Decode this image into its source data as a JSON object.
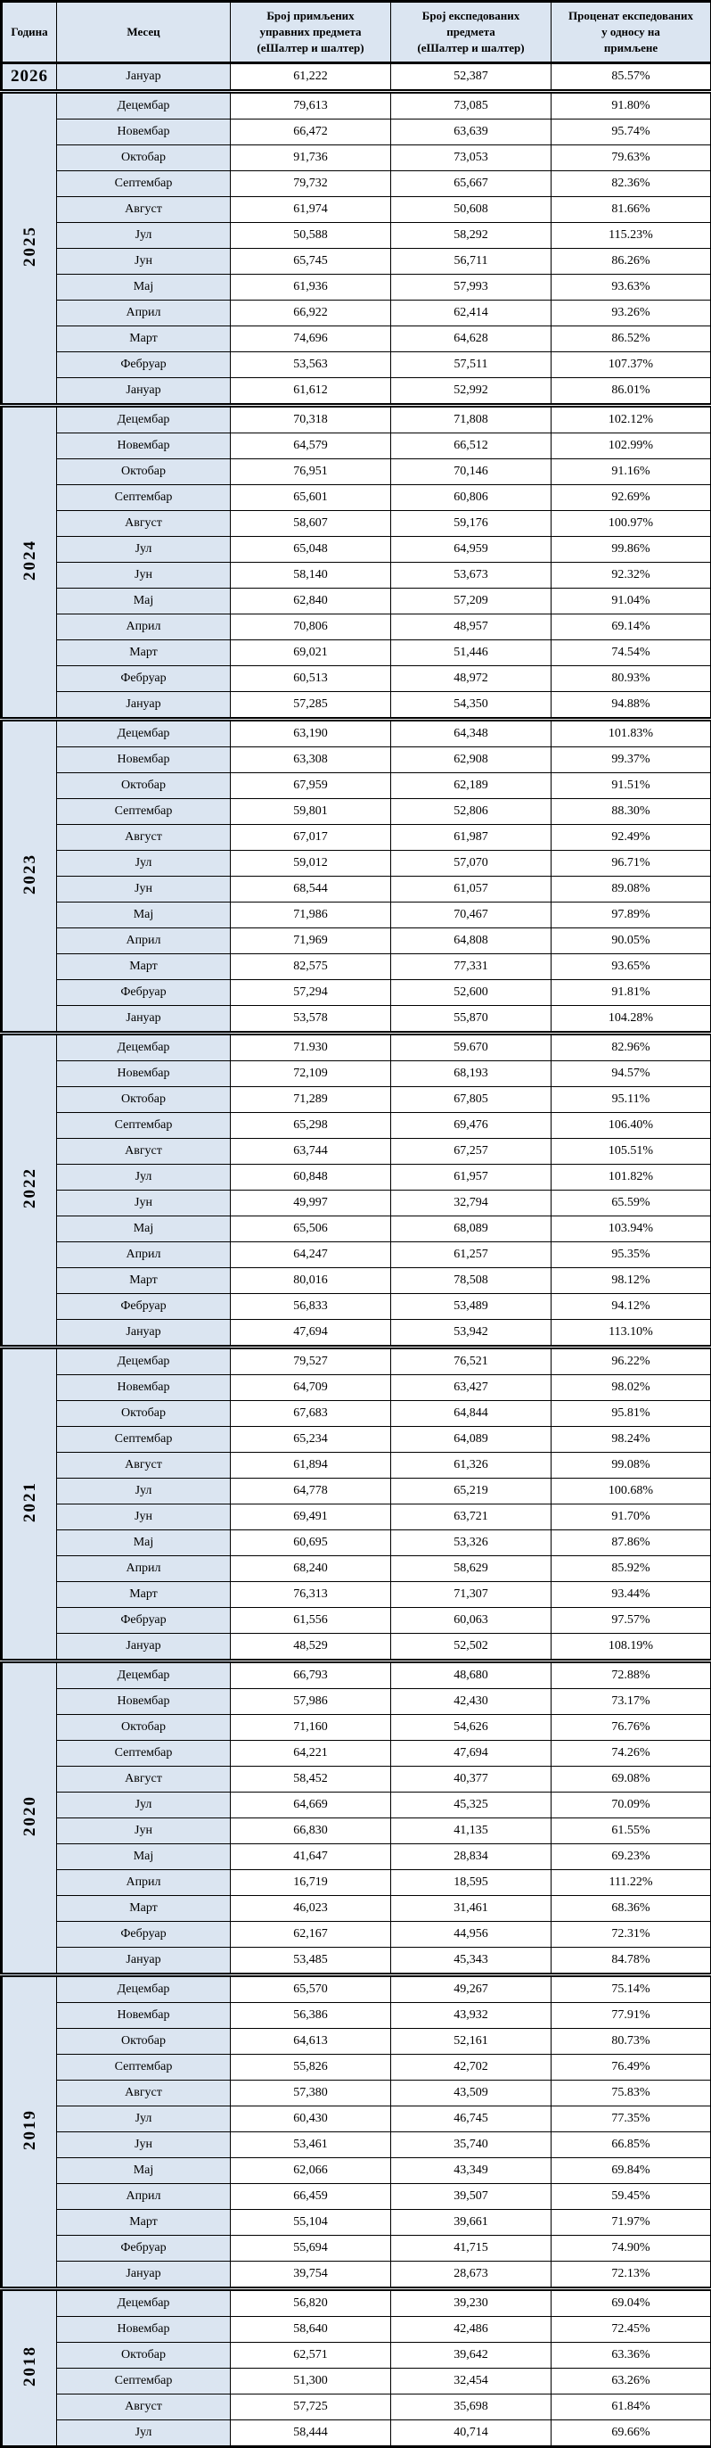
{
  "headers": {
    "year": "Година",
    "month": "Месец",
    "received": "Број примљених\nуправних предмета\n(еШалтер и шалтер)",
    "dispatched": "Број експедованих\nпредмета\n(еШалтер и шалтер)",
    "percent": "Проценат експедованих\nу односу на\nпримљене"
  },
  "colors": {
    "header_bg": "#dbe5f1",
    "cell_bg": "#ffffff",
    "border": "#000000"
  },
  "years": [
    {
      "year": "2026",
      "rows": [
        {
          "month": "Јануар",
          "received": "61,222",
          "dispatched": "52,387",
          "percent": "85.57%"
        }
      ]
    },
    {
      "year": "2025",
      "rows": [
        {
          "month": "Децембар",
          "received": "79,613",
          "dispatched": "73,085",
          "percent": "91.80%"
        },
        {
          "month": "Новембар",
          "received": "66,472",
          "dispatched": "63,639",
          "percent": "95.74%"
        },
        {
          "month": "Октобар",
          "received": "91,736",
          "dispatched": "73,053",
          "percent": "79.63%"
        },
        {
          "month": "Септембар",
          "received": "79,732",
          "dispatched": "65,667",
          "percent": "82.36%"
        },
        {
          "month": "Август",
          "received": "61,974",
          "dispatched": "50,608",
          "percent": "81.66%"
        },
        {
          "month": "Јул",
          "received": "50,588",
          "dispatched": "58,292",
          "percent": "115.23%"
        },
        {
          "month": "Јун",
          "received": "65,745",
          "dispatched": "56,711",
          "percent": "86.26%"
        },
        {
          "month": "Мај",
          "received": "61,936",
          "dispatched": "57,993",
          "percent": "93.63%"
        },
        {
          "month": "Април",
          "received": "66,922",
          "dispatched": "62,414",
          "percent": "93.26%"
        },
        {
          "month": "Март",
          "received": "74,696",
          "dispatched": "64,628",
          "percent": "86.52%"
        },
        {
          "month": "Фебруар",
          "received": "53,563",
          "dispatched": "57,511",
          "percent": "107.37%"
        },
        {
          "month": "Јануар",
          "received": "61,612",
          "dispatched": "52,992",
          "percent": "86.01%"
        }
      ]
    },
    {
      "year": "2024",
      "rows": [
        {
          "month": "Децембар",
          "received": "70,318",
          "dispatched": "71,808",
          "percent": "102.12%"
        },
        {
          "month": "Новембар",
          "received": "64,579",
          "dispatched": "66,512",
          "percent": "102.99%"
        },
        {
          "month": "Октобар",
          "received": "76,951",
          "dispatched": "70,146",
          "percent": "91.16%"
        },
        {
          "month": "Септембар",
          "received": "65,601",
          "dispatched": "60,806",
          "percent": "92.69%"
        },
        {
          "month": "Август",
          "received": "58,607",
          "dispatched": "59,176",
          "percent": "100.97%"
        },
        {
          "month": "Јул",
          "received": "65,048",
          "dispatched": "64,959",
          "percent": "99.86%"
        },
        {
          "month": "Јун",
          "received": "58,140",
          "dispatched": "53,673",
          "percent": "92.32%"
        },
        {
          "month": "Мај",
          "received": "62,840",
          "dispatched": "57,209",
          "percent": "91.04%"
        },
        {
          "month": "Април",
          "received": "70,806",
          "dispatched": "48,957",
          "percent": "69.14%"
        },
        {
          "month": "Март",
          "received": "69,021",
          "dispatched": "51,446",
          "percent": "74.54%"
        },
        {
          "month": "Фебруар",
          "received": "60,513",
          "dispatched": "48,972",
          "percent": "80.93%"
        },
        {
          "month": "Јануар",
          "received": "57,285",
          "dispatched": "54,350",
          "percent": "94.88%"
        }
      ]
    },
    {
      "year": "2023",
      "rows": [
        {
          "month": "Децембар",
          "received": "63,190",
          "dispatched": "64,348",
          "percent": "101.83%"
        },
        {
          "month": "Новембар",
          "received": "63,308",
          "dispatched": "62,908",
          "percent": "99.37%"
        },
        {
          "month": "Октобар",
          "received": "67,959",
          "dispatched": "62,189",
          "percent": "91.51%"
        },
        {
          "month": "Септембар",
          "received": "59,801",
          "dispatched": "52,806",
          "percent": "88.30%"
        },
        {
          "month": "Август",
          "received": "67,017",
          "dispatched": "61,987",
          "percent": "92.49%"
        },
        {
          "month": "Јул",
          "received": "59,012",
          "dispatched": "57,070",
          "percent": "96.71%"
        },
        {
          "month": "Јун",
          "received": "68,544",
          "dispatched": "61,057",
          "percent": "89.08%"
        },
        {
          "month": "Мај",
          "received": "71,986",
          "dispatched": "70,467",
          "percent": "97.89%"
        },
        {
          "month": "Април",
          "received": "71,969",
          "dispatched": "64,808",
          "percent": "90.05%"
        },
        {
          "month": "Март",
          "received": "82,575",
          "dispatched": "77,331",
          "percent": "93.65%"
        },
        {
          "month": "Фебруар",
          "received": "57,294",
          "dispatched": "52,600",
          "percent": "91.81%"
        },
        {
          "month": "Јануар",
          "received": "53,578",
          "dispatched": "55,870",
          "percent": "104.28%"
        }
      ]
    },
    {
      "year": "2022",
      "rows": [
        {
          "month": "Децембар",
          "received": "71.930",
          "dispatched": "59.670",
          "percent": "82.96%"
        },
        {
          "month": "Новембар",
          "received": "72,109",
          "dispatched": "68,193",
          "percent": "94.57%"
        },
        {
          "month": "Октобар",
          "received": "71,289",
          "dispatched": "67,805",
          "percent": "95.11%"
        },
        {
          "month": "Септембар",
          "received": "65,298",
          "dispatched": "69,476",
          "percent": "106.40%"
        },
        {
          "month": "Август",
          "received": "63,744",
          "dispatched": "67,257",
          "percent": "105.51%"
        },
        {
          "month": "Јул",
          "received": "60,848",
          "dispatched": "61,957",
          "percent": "101.82%"
        },
        {
          "month": "Јун",
          "received": "49,997",
          "dispatched": "32,794",
          "percent": "65.59%"
        },
        {
          "month": "Мај",
          "received": "65,506",
          "dispatched": "68,089",
          "percent": "103.94%"
        },
        {
          "month": "Април",
          "received": "64,247",
          "dispatched": "61,257",
          "percent": "95.35%"
        },
        {
          "month": "Март",
          "received": "80,016",
          "dispatched": "78,508",
          "percent": "98.12%"
        },
        {
          "month": "Фебруар",
          "received": "56,833",
          "dispatched": "53,489",
          "percent": "94.12%"
        },
        {
          "month": "Јануар",
          "received": "47,694",
          "dispatched": "53,942",
          "percent": "113.10%"
        }
      ]
    },
    {
      "year": "2021",
      "rows": [
        {
          "month": "Децембар",
          "received": "79,527",
          "dispatched": "76,521",
          "percent": "96.22%"
        },
        {
          "month": "Новембар",
          "received": "64,709",
          "dispatched": "63,427",
          "percent": "98.02%"
        },
        {
          "month": "Октобар",
          "received": "67,683",
          "dispatched": "64,844",
          "percent": "95.81%"
        },
        {
          "month": "Септембар",
          "received": "65,234",
          "dispatched": "64,089",
          "percent": "98.24%"
        },
        {
          "month": "Август",
          "received": "61,894",
          "dispatched": "61,326",
          "percent": "99.08%"
        },
        {
          "month": "Јул",
          "received": "64,778",
          "dispatched": "65,219",
          "percent": "100.68%"
        },
        {
          "month": "Јун",
          "received": "69,491",
          "dispatched": "63,721",
          "percent": "91.70%"
        },
        {
          "month": "Мај",
          "received": "60,695",
          "dispatched": "53,326",
          "percent": "87.86%"
        },
        {
          "month": "Април",
          "received": "68,240",
          "dispatched": "58,629",
          "percent": "85.92%"
        },
        {
          "month": "Март",
          "received": "76,313",
          "dispatched": "71,307",
          "percent": "93.44%"
        },
        {
          "month": "Фебруар",
          "received": "61,556",
          "dispatched": "60,063",
          "percent": "97.57%"
        },
        {
          "month": "Јануар",
          "received": "48,529",
          "dispatched": "52,502",
          "percent": "108.19%"
        }
      ]
    },
    {
      "year": "2020",
      "rows": [
        {
          "month": "Децембар",
          "received": "66,793",
          "dispatched": "48,680",
          "percent": "72.88%"
        },
        {
          "month": "Новембар",
          "received": "57,986",
          "dispatched": "42,430",
          "percent": "73.17%"
        },
        {
          "month": "Октобар",
          "received": "71,160",
          "dispatched": "54,626",
          "percent": "76.76%"
        },
        {
          "month": "Септембар",
          "received": "64,221",
          "dispatched": "47,694",
          "percent": "74.26%"
        },
        {
          "month": "Август",
          "received": "58,452",
          "dispatched": "40,377",
          "percent": "69.08%"
        },
        {
          "month": "Јул",
          "received": "64,669",
          "dispatched": "45,325",
          "percent": "70.09%"
        },
        {
          "month": "Јун",
          "received": "66,830",
          "dispatched": "41,135",
          "percent": "61.55%"
        },
        {
          "month": "Мај",
          "received": "41,647",
          "dispatched": "28,834",
          "percent": "69.23%"
        },
        {
          "month": "Април",
          "received": "16,719",
          "dispatched": "18,595",
          "percent": "111.22%"
        },
        {
          "month": "Март",
          "received": "46,023",
          "dispatched": "31,461",
          "percent": "68.36%"
        },
        {
          "month": "Фебруар",
          "received": "62,167",
          "dispatched": "44,956",
          "percent": "72.31%"
        },
        {
          "month": "Јануар",
          "received": "53,485",
          "dispatched": "45,343",
          "percent": "84.78%"
        }
      ]
    },
    {
      "year": "2019",
      "rows": [
        {
          "month": "Децембар",
          "received": "65,570",
          "dispatched": "49,267",
          "percent": "75.14%"
        },
        {
          "month": "Новембар",
          "received": "56,386",
          "dispatched": "43,932",
          "percent": "77.91%"
        },
        {
          "month": "Октобар",
          "received": "64,613",
          "dispatched": "52,161",
          "percent": "80.73%"
        },
        {
          "month": "Септембар",
          "received": "55,826",
          "dispatched": "42,702",
          "percent": "76.49%"
        },
        {
          "month": "Август",
          "received": "57,380",
          "dispatched": "43,509",
          "percent": "75.83%"
        },
        {
          "month": "Јул",
          "received": "60,430",
          "dispatched": "46,745",
          "percent": "77.35%"
        },
        {
          "month": "Јун",
          "received": "53,461",
          "dispatched": "35,740",
          "percent": "66.85%"
        },
        {
          "month": "Мај",
          "received": "62,066",
          "dispatched": "43,349",
          "percent": "69.84%"
        },
        {
          "month": "Април",
          "received": "66,459",
          "dispatched": "39,507",
          "percent": "59.45%"
        },
        {
          "month": "Март",
          "received": "55,104",
          "dispatched": "39,661",
          "percent": "71.97%"
        },
        {
          "month": "Фебруар",
          "received": "55,694",
          "dispatched": "41,715",
          "percent": "74.90%"
        },
        {
          "month": "Јануар",
          "received": "39,754",
          "dispatched": "28,673",
          "percent": "72.13%"
        }
      ]
    },
    {
      "year": "2018",
      "rows": [
        {
          "month": "Децембар",
          "received": "56,820",
          "dispatched": "39,230",
          "percent": "69.04%"
        },
        {
          "month": "Новембар",
          "received": "58,640",
          "dispatched": "42,486",
          "percent": "72.45%"
        },
        {
          "month": "Октобар",
          "received": "62,571",
          "dispatched": "39,642",
          "percent": "63.36%"
        },
        {
          "month": "Септембар",
          "received": "51,300",
          "dispatched": "32,454",
          "percent": "63.26%"
        },
        {
          "month": "Август",
          "received": "57,725",
          "dispatched": "35,698",
          "percent": "61.84%"
        },
        {
          "month": "Јул",
          "received": "58,444",
          "dispatched": "40,714",
          "percent": "69.66%"
        }
      ]
    }
  ]
}
